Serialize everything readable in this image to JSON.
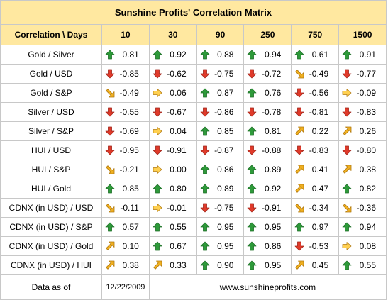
{
  "title": "Sunshine Profits' Correlation Matrix",
  "header": {
    "corner": "Correlation \\ Days",
    "periods": [
      "10",
      "30",
      "90",
      "250",
      "750",
      "1500"
    ]
  },
  "rows": [
    {
      "label": "Gold / Silver",
      "cells": [
        {
          "value": "0.81",
          "icon": "arrow-up-icon"
        },
        {
          "value": "0.92",
          "icon": "arrow-up-icon"
        },
        {
          "value": "0.88",
          "icon": "arrow-up-icon"
        },
        {
          "value": "0.94",
          "icon": "arrow-up-icon"
        },
        {
          "value": "0.61",
          "icon": "arrow-up-icon"
        },
        {
          "value": "0.91",
          "icon": "arrow-up-icon"
        }
      ]
    },
    {
      "label": "Gold / USD",
      "cells": [
        {
          "value": "-0.85",
          "icon": "arrow-down-icon"
        },
        {
          "value": "-0.62",
          "icon": "arrow-down-icon"
        },
        {
          "value": "-0.75",
          "icon": "arrow-down-icon"
        },
        {
          "value": "-0.72",
          "icon": "arrow-down-icon"
        },
        {
          "value": "-0.49",
          "icon": "arrow-down-right-icon"
        },
        {
          "value": "-0.77",
          "icon": "arrow-down-icon"
        }
      ]
    },
    {
      "label": "Gold / S&P",
      "cells": [
        {
          "value": "-0.49",
          "icon": "arrow-down-right-icon"
        },
        {
          "value": "0.06",
          "icon": "arrow-right-icon"
        },
        {
          "value": "0.87",
          "icon": "arrow-up-icon"
        },
        {
          "value": "0.76",
          "icon": "arrow-up-icon"
        },
        {
          "value": "-0.56",
          "icon": "arrow-down-icon"
        },
        {
          "value": "-0.09",
          "icon": "arrow-right-icon"
        }
      ]
    },
    {
      "label": "Silver / USD",
      "cells": [
        {
          "value": "-0.55",
          "icon": "arrow-down-icon"
        },
        {
          "value": "-0.67",
          "icon": "arrow-down-icon"
        },
        {
          "value": "-0.86",
          "icon": "arrow-down-icon"
        },
        {
          "value": "-0.78",
          "icon": "arrow-down-icon"
        },
        {
          "value": "-0.81",
          "icon": "arrow-down-icon"
        },
        {
          "value": "-0.83",
          "icon": "arrow-down-icon"
        }
      ]
    },
    {
      "label": "Silver / S&P",
      "cells": [
        {
          "value": "-0.69",
          "icon": "arrow-down-icon"
        },
        {
          "value": "0.04",
          "icon": "arrow-right-icon"
        },
        {
          "value": "0.85",
          "icon": "arrow-up-icon"
        },
        {
          "value": "0.81",
          "icon": "arrow-up-icon"
        },
        {
          "value": "0.22",
          "icon": "arrow-up-right-icon"
        },
        {
          "value": "0.26",
          "icon": "arrow-up-right-icon"
        }
      ]
    },
    {
      "label": "HUI / USD",
      "cells": [
        {
          "value": "-0.95",
          "icon": "arrow-down-icon"
        },
        {
          "value": "-0.91",
          "icon": "arrow-down-icon"
        },
        {
          "value": "-0.87",
          "icon": "arrow-down-icon"
        },
        {
          "value": "-0.88",
          "icon": "arrow-down-icon"
        },
        {
          "value": "-0.83",
          "icon": "arrow-down-icon"
        },
        {
          "value": "-0.80",
          "icon": "arrow-down-icon"
        }
      ]
    },
    {
      "label": "HUI / S&P",
      "cells": [
        {
          "value": "-0.21",
          "icon": "arrow-down-right-icon"
        },
        {
          "value": "0.00",
          "icon": "arrow-right-icon"
        },
        {
          "value": "0.86",
          "icon": "arrow-up-icon"
        },
        {
          "value": "0.89",
          "icon": "arrow-up-icon"
        },
        {
          "value": "0.41",
          "icon": "arrow-up-right-icon"
        },
        {
          "value": "0.38",
          "icon": "arrow-up-right-icon"
        }
      ]
    },
    {
      "label": "HUI / Gold",
      "cells": [
        {
          "value": "0.85",
          "icon": "arrow-up-icon"
        },
        {
          "value": "0.80",
          "icon": "arrow-up-icon"
        },
        {
          "value": "0.89",
          "icon": "arrow-up-icon"
        },
        {
          "value": "0.92",
          "icon": "arrow-up-icon"
        },
        {
          "value": "0.47",
          "icon": "arrow-up-right-icon"
        },
        {
          "value": "0.82",
          "icon": "arrow-up-icon"
        }
      ]
    },
    {
      "label": "CDNX (in USD) / USD",
      "cells": [
        {
          "value": "-0.11",
          "icon": "arrow-down-right-icon"
        },
        {
          "value": "-0.01",
          "icon": "arrow-right-icon"
        },
        {
          "value": "-0.75",
          "icon": "arrow-down-icon"
        },
        {
          "value": "-0.91",
          "icon": "arrow-down-icon"
        },
        {
          "value": "-0.34",
          "icon": "arrow-down-right-icon"
        },
        {
          "value": "-0.36",
          "icon": "arrow-down-right-icon"
        }
      ]
    },
    {
      "label": "CDNX (in USD) / S&P",
      "cells": [
        {
          "value": "0.57",
          "icon": "arrow-up-icon"
        },
        {
          "value": "0.55",
          "icon": "arrow-up-icon"
        },
        {
          "value": "0.95",
          "icon": "arrow-up-icon"
        },
        {
          "value": "0.95",
          "icon": "arrow-up-icon"
        },
        {
          "value": "0.97",
          "icon": "arrow-up-icon"
        },
        {
          "value": "0.94",
          "icon": "arrow-up-icon"
        }
      ]
    },
    {
      "label": "CDNX (in USD) / Gold",
      "cells": [
        {
          "value": "0.10",
          "icon": "arrow-up-right-icon"
        },
        {
          "value": "0.67",
          "icon": "arrow-up-icon"
        },
        {
          "value": "0.95",
          "icon": "arrow-up-icon"
        },
        {
          "value": "0.86",
          "icon": "arrow-up-icon"
        },
        {
          "value": "-0.53",
          "icon": "arrow-down-icon"
        },
        {
          "value": "0.08",
          "icon": "arrow-right-icon"
        }
      ]
    },
    {
      "label": "CDNX (in USD) / HUI",
      "cells": [
        {
          "value": "0.38",
          "icon": "arrow-up-right-icon"
        },
        {
          "value": "0.33",
          "icon": "arrow-up-right-icon"
        },
        {
          "value": "0.90",
          "icon": "arrow-up-icon"
        },
        {
          "value": "0.95",
          "icon": "arrow-up-icon"
        },
        {
          "value": "0.45",
          "icon": "arrow-up-right-icon"
        },
        {
          "value": "0.55",
          "icon": "arrow-up-icon"
        }
      ]
    }
  ],
  "footer": {
    "label": "Data as of",
    "date": "12/22/2009",
    "site": "www.sunshineprofits.com"
  },
  "colors": {
    "header_bg": "#ffe8a0",
    "border": "#c8c8c8",
    "up_fill": "#2e9a3a",
    "down_fill": "#e03a2a",
    "diagonal_fill": "#f0b020",
    "diagonal_stroke": "#b07810",
    "right_fill": "#ffd050"
  }
}
